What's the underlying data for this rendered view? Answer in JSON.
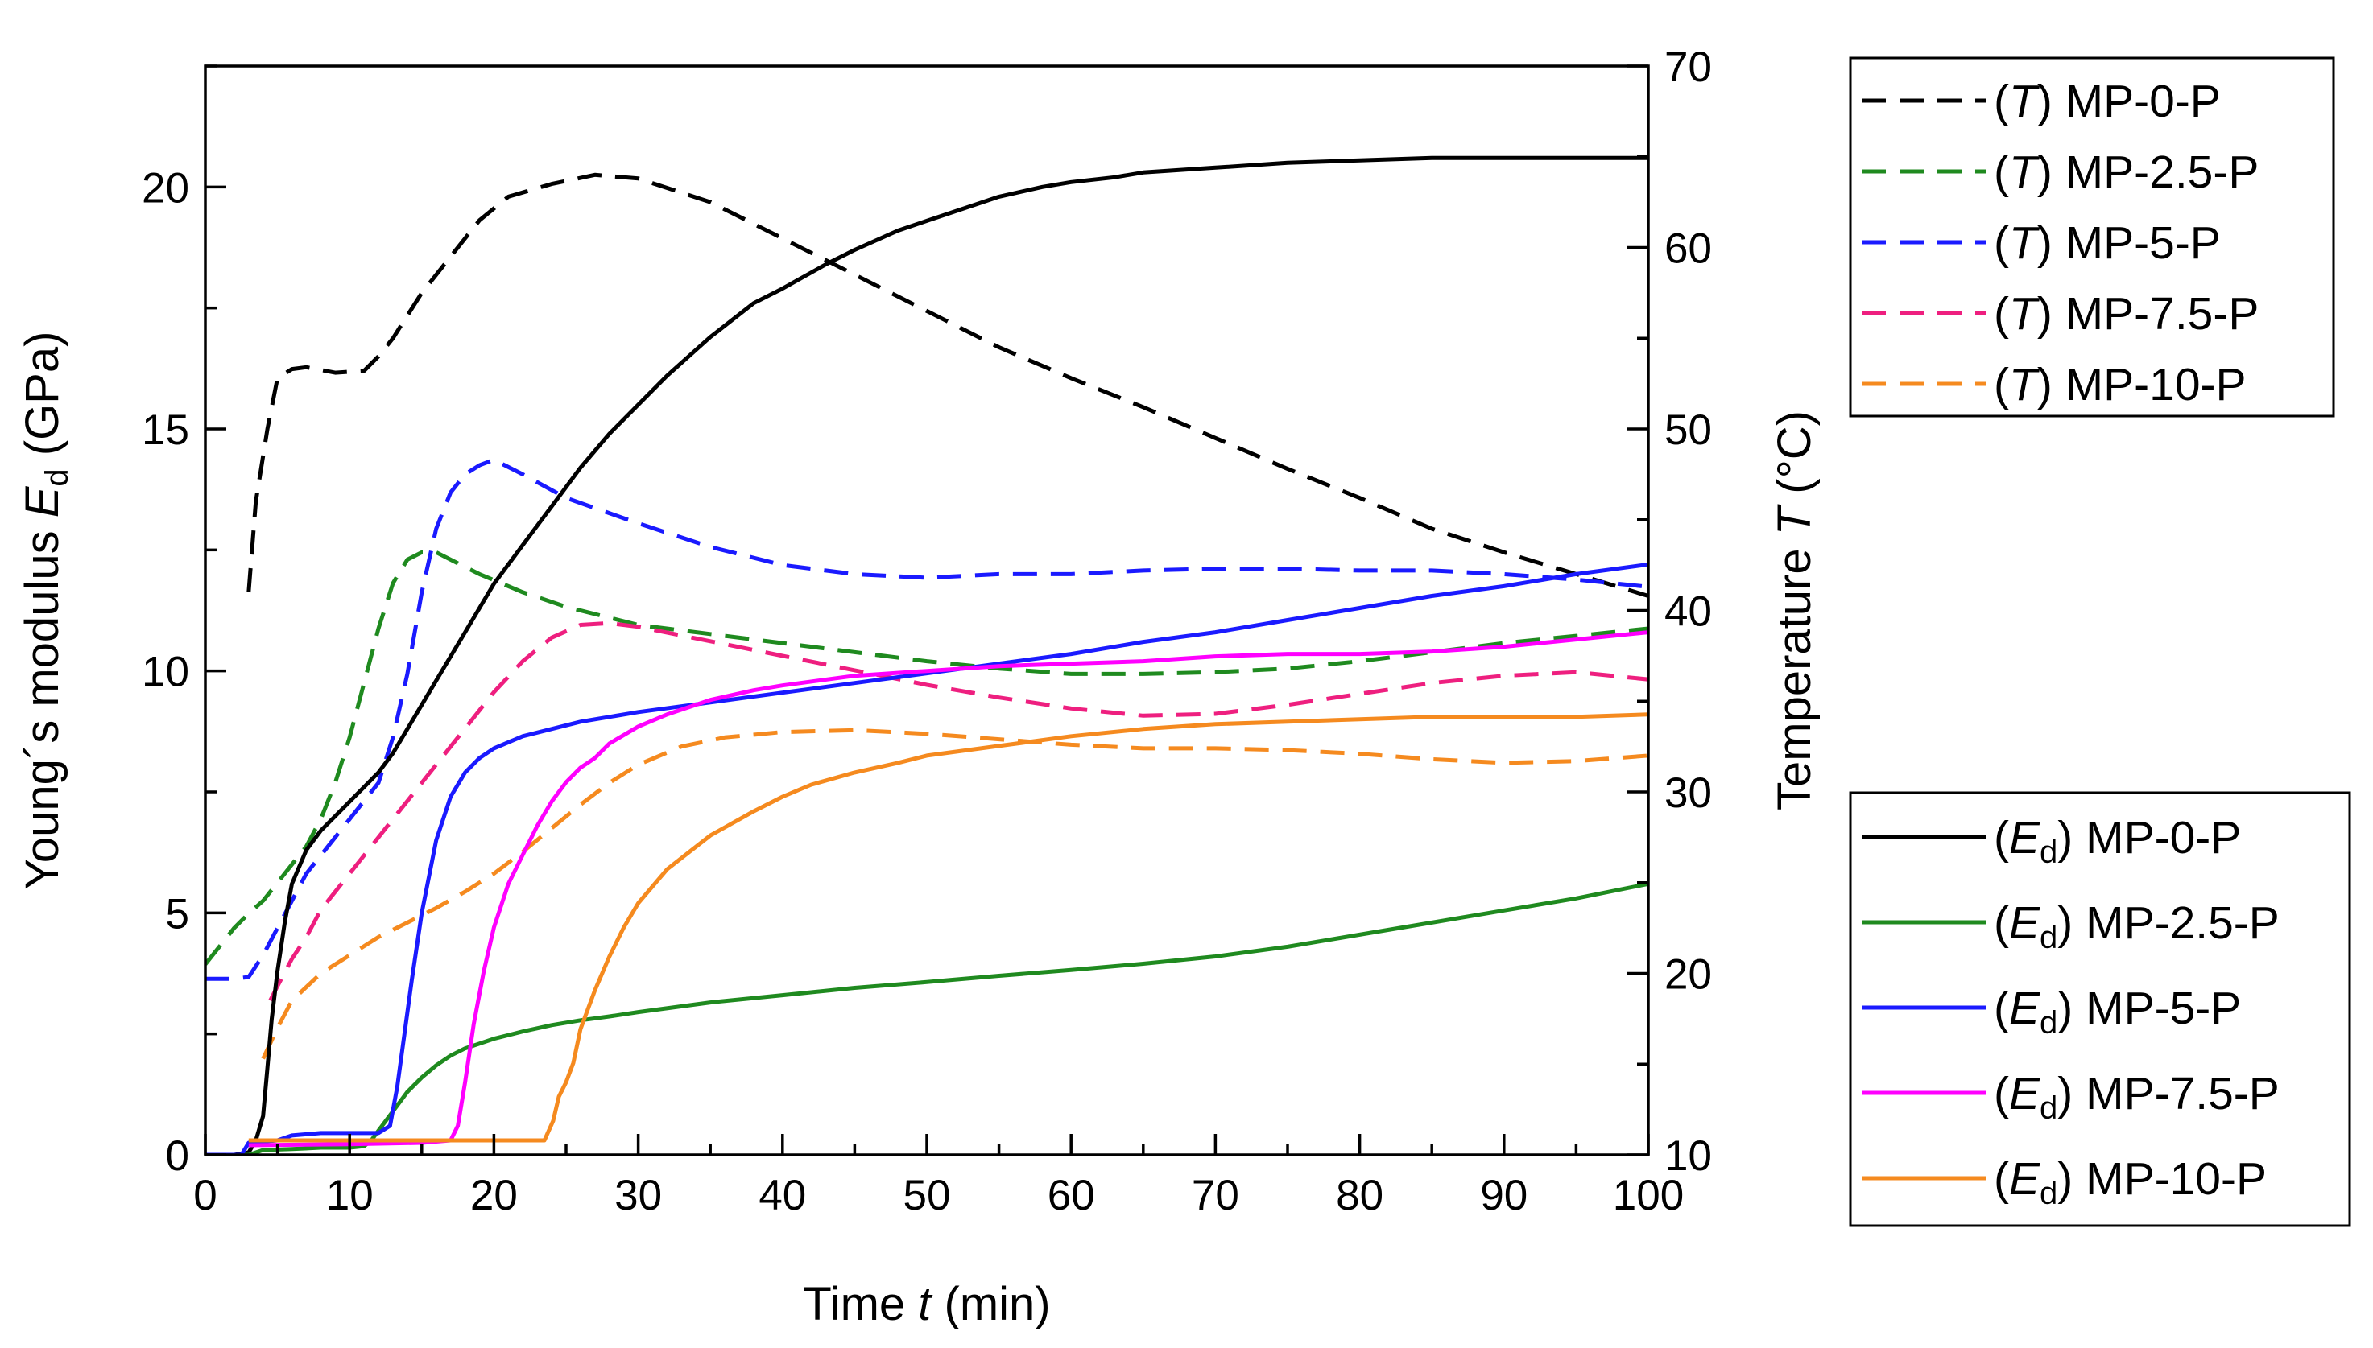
{
  "chart_data": {
    "type": "line",
    "x": {
      "label_prefix": "Time ",
      "label_var": "t",
      "label_suffix": " (min)",
      "range": [
        0,
        100
      ],
      "ticks": [
        "0",
        "10",
        "20",
        "30",
        "40",
        "50",
        "60",
        "70",
        "80",
        "90",
        "100"
      ]
    },
    "y_left": {
      "label_prefix": "Young´s modulus ",
      "label_var": "E",
      "label_sub": "d",
      "label_suffix": " (GPa)",
      "range": [
        0,
        22.5
      ],
      "ticks": [
        "0",
        "5",
        "10",
        "15",
        "20"
      ]
    },
    "y_right": {
      "label_prefix": "Temperature ",
      "label_var": "T",
      "label_suffix": " (°C)",
      "range": [
        10,
        70
      ],
      "ticks": [
        "10",
        "20",
        "30",
        "40",
        "50",
        "60",
        "70"
      ]
    },
    "legend_temperature": {
      "placement": "top-right",
      "entries": [
        {
          "prefix": "(",
          "var": "T",
          "suffix": ") MP-0-P"
        },
        {
          "prefix": "(",
          "var": "T",
          "suffix": ") MP-2.5-P"
        },
        {
          "prefix": "(",
          "var": "T",
          "suffix": ") MP-5-P"
        },
        {
          "prefix": "(",
          "var": "T",
          "suffix": ") MP-7.5-P"
        },
        {
          "prefix": "(",
          "var": "T",
          "suffix": ") MP-10-P"
        }
      ]
    },
    "legend_modulus": {
      "placement": "bottom-right",
      "entries": [
        {
          "prefix": "(",
          "var": "E",
          "sub": "d",
          "suffix": ") MP-0-P"
        },
        {
          "prefix": "(",
          "var": "E",
          "sub": "d",
          "suffix": ") MP-2.5-P"
        },
        {
          "prefix": "(",
          "var": "E",
          "sub": "d",
          "suffix": ") MP-5-P"
        },
        {
          "prefix": "(",
          "var": "E",
          "sub": "d",
          "suffix": ") MP-7.5-P"
        },
        {
          "prefix": "(",
          "var": "E",
          "sub": "d",
          "suffix": ") MP-10-P"
        }
      ]
    },
    "series": [
      {
        "name": "(T) MP-0-P",
        "axis": "right",
        "dash": true,
        "color": "#000000",
        "x": [
          3,
          3.5,
          4.3,
          5,
          6,
          7,
          9,
          11,
          12,
          13,
          15,
          17,
          19,
          21,
          24,
          27,
          30,
          35,
          40,
          45,
          50,
          55,
          60,
          65,
          70,
          75,
          80,
          85,
          90,
          95,
          100
        ],
        "y": [
          41,
          46,
          50,
          52.8,
          53.3,
          53.4,
          53.1,
          53.2,
          54,
          55,
          57.5,
          59.5,
          61.5,
          62.8,
          63.5,
          64,
          63.8,
          62.5,
          60.5,
          58.5,
          56.5,
          54.5,
          52.8,
          51.2,
          49.5,
          47.8,
          46.2,
          44.5,
          43.2,
          42,
          40.8
        ]
      },
      {
        "name": "(T) MP-2.5-P",
        "axis": "right",
        "dash": true,
        "color": "#1f8a1f",
        "x": [
          0,
          1,
          2,
          3,
          4,
          5,
          6,
          7,
          8,
          9,
          10,
          11,
          12,
          13,
          14,
          15,
          16,
          17,
          19,
          22,
          25,
          30,
          35,
          40,
          45,
          50,
          55,
          60,
          65,
          70,
          75,
          80,
          85,
          90,
          95,
          100
        ],
        "y": [
          20.5,
          21.5,
          22.5,
          23.3,
          24,
          25,
          26,
          27,
          28.5,
          30.5,
          33,
          36,
          39,
          41.5,
          42.8,
          43.2,
          43.2,
          42.8,
          42,
          41,
          40.2,
          39.2,
          38.7,
          38.2,
          37.7,
          37.2,
          36.8,
          36.5,
          36.5,
          36.6,
          36.8,
          37.2,
          37.7,
          38.2,
          38.6,
          39
        ]
      },
      {
        "name": "(T) MP-5-P",
        "axis": "right",
        "dash": true,
        "color": "#1a1aff",
        "x": [
          0,
          1,
          2,
          3,
          4,
          5,
          6,
          7,
          8,
          9,
          10,
          11,
          12,
          13,
          14,
          15,
          16,
          17,
          18,
          19,
          20,
          22,
          25,
          30,
          35,
          40,
          45,
          50,
          55,
          60,
          65,
          70,
          75,
          80,
          85,
          90,
          95,
          100
        ],
        "y": [
          19.7,
          19.7,
          19.7,
          19.8,
          21,
          22.5,
          24,
          25.5,
          26.5,
          27.5,
          28.5,
          29.5,
          30.5,
          33,
          36.5,
          41,
          44.5,
          46.5,
          47.5,
          48,
          48.3,
          47.5,
          46.2,
          44.8,
          43.5,
          42.5,
          42,
          41.8,
          42,
          42,
          42.2,
          42.3,
          42.3,
          42.2,
          42.2,
          42,
          41.7,
          41.3
        ]
      },
      {
        "name": "(T) MP-7.5-P",
        "axis": "right",
        "dash": true,
        "color": "#ee1f7f",
        "x": [
          4.5,
          5,
          6,
          7,
          8,
          10,
          12,
          14,
          16,
          18,
          20,
          22,
          24,
          26,
          28,
          30,
          35,
          40,
          45,
          50,
          55,
          60,
          65,
          70,
          75,
          80,
          85,
          90,
          95,
          100
        ],
        "y": [
          18.5,
          19.3,
          20.8,
          22,
          23.5,
          25.5,
          27.5,
          29.5,
          31.5,
          33.5,
          35.5,
          37.2,
          38.5,
          39.2,
          39.3,
          39.1,
          38.3,
          37.5,
          36.7,
          35.9,
          35.2,
          34.6,
          34.2,
          34.3,
          34.8,
          35.4,
          36,
          36.4,
          36.6,
          36.2
        ]
      },
      {
        "name": "(T) MP-10-P",
        "axis": "right",
        "dash": true,
        "color": "#f58a1f",
        "x": [
          4,
          5,
          6,
          8,
          10,
          12,
          14,
          16,
          18,
          20,
          22,
          24,
          26,
          28,
          30,
          33,
          36,
          40,
          45,
          50,
          55,
          60,
          65,
          70,
          75,
          80,
          85,
          90,
          95,
          100
        ],
        "y": [
          15.3,
          17,
          18.5,
          20,
          21,
          22,
          22.8,
          23.6,
          24.5,
          25.5,
          26.7,
          28,
          29.3,
          30.5,
          31.5,
          32.5,
          33,
          33.3,
          33.4,
          33.2,
          32.9,
          32.6,
          32.4,
          32.4,
          32.3,
          32.1,
          31.8,
          31.6,
          31.7,
          32
        ]
      },
      {
        "name": "(Ed) MP-0-P",
        "axis": "left",
        "dash": false,
        "color": "#000000",
        "x": [
          0,
          2,
          3,
          3.5,
          4,
          4.3,
          4.6,
          5,
          5.5,
          6,
          7,
          8,
          9,
          10,
          11,
          12,
          13,
          14,
          15,
          16,
          18,
          20,
          22,
          24,
          26,
          28,
          30,
          32,
          35,
          38,
          40,
          43,
          45,
          48,
          50,
          53,
          55,
          58,
          60,
          63,
          65,
          70,
          75,
          80,
          85,
          90,
          95,
          100
        ],
        "y": [
          0,
          0,
          0.05,
          0.3,
          0.8,
          1.8,
          2.8,
          3.8,
          4.8,
          5.6,
          6.3,
          6.7,
          7,
          7.3,
          7.6,
          7.9,
          8.3,
          8.8,
          9.3,
          9.8,
          10.8,
          11.8,
          12.6,
          13.4,
          14.2,
          14.9,
          15.5,
          16.1,
          16.9,
          17.6,
          17.9,
          18.4,
          18.7,
          19.1,
          19.3,
          19.6,
          19.8,
          20,
          20.1,
          20.2,
          20.3,
          20.4,
          20.5,
          20.55,
          20.6,
          20.6,
          20.6,
          20.6
        ]
      },
      {
        "name": "(Ed) MP-2.5-P",
        "axis": "left",
        "dash": false,
        "color": "#1f8a1f",
        "x": [
          0,
          3,
          4,
          6,
          8,
          10,
          11,
          11.5,
          12,
          13,
          14,
          15,
          16,
          17,
          18,
          19,
          20,
          22,
          24,
          26,
          28,
          30,
          35,
          40,
          45,
          50,
          55,
          60,
          65,
          70,
          75,
          80,
          85,
          90,
          95,
          100
        ],
        "y": [
          0,
          0,
          0.1,
          0.12,
          0.15,
          0.15,
          0.18,
          0.3,
          0.5,
          0.9,
          1.3,
          1.6,
          1.85,
          2.05,
          2.2,
          2.3,
          2.4,
          2.55,
          2.68,
          2.78,
          2.86,
          2.95,
          3.15,
          3.3,
          3.45,
          3.57,
          3.7,
          3.82,
          3.95,
          4.1,
          4.3,
          4.55,
          4.8,
          5.05,
          5.3,
          5.6
        ]
      },
      {
        "name": "(Ed) MP-5-P",
        "axis": "left",
        "dash": false,
        "color": "#1a1aff",
        "x": [
          0,
          2.5,
          3,
          5,
          6,
          8,
          10,
          12,
          12.8,
          13.3,
          13.8,
          14.3,
          15,
          16,
          17,
          18,
          19,
          20,
          22,
          24,
          26,
          28,
          30,
          35,
          40,
          45,
          50,
          55,
          60,
          65,
          70,
          75,
          80,
          85,
          90,
          95,
          100
        ],
        "y": [
          0,
          0,
          0.25,
          0.3,
          0.4,
          0.45,
          0.45,
          0.45,
          0.6,
          1.4,
          2.5,
          3.6,
          5,
          6.5,
          7.4,
          7.9,
          8.2,
          8.4,
          8.65,
          8.8,
          8.95,
          9.05,
          9.15,
          9.35,
          9.55,
          9.75,
          9.95,
          10.15,
          10.35,
          10.6,
          10.8,
          11.05,
          11.3,
          11.55,
          11.75,
          12,
          12.2
        ]
      },
      {
        "name": "(Ed) MP-7.5-P",
        "axis": "left",
        "dash": false,
        "color": "#ff00ff",
        "x": [
          3,
          10,
          15,
          17,
          17.5,
          18,
          18.6,
          19.3,
          20,
          21,
          22,
          23,
          24,
          25,
          26,
          27,
          28,
          30,
          32,
          35,
          38,
          40,
          45,
          50,
          55,
          60,
          65,
          70,
          75,
          80,
          85,
          90,
          95,
          100
        ],
        "y": [
          0.2,
          0.22,
          0.25,
          0.3,
          0.6,
          1.5,
          2.7,
          3.8,
          4.7,
          5.6,
          6.2,
          6.8,
          7.3,
          7.7,
          8,
          8.2,
          8.5,
          8.85,
          9.1,
          9.4,
          9.6,
          9.7,
          9.9,
          10,
          10.1,
          10.15,
          10.2,
          10.3,
          10.35,
          10.35,
          10.4,
          10.5,
          10.65,
          10.8
        ]
      },
      {
        "name": "(Ed) MP-10-P",
        "axis": "left",
        "dash": false,
        "color": "#f58a1f",
        "x": [
          3,
          10,
          15,
          20,
          23.5,
          24.1,
          24.5,
          25,
          25.5,
          26,
          27,
          28,
          29,
          30,
          32,
          35,
          38,
          40,
          42,
          45,
          48,
          50,
          55,
          60,
          65,
          70,
          75,
          80,
          85,
          90,
          95,
          100
        ],
        "y": [
          0.3,
          0.3,
          0.3,
          0.3,
          0.3,
          0.7,
          1.2,
          1.5,
          1.9,
          2.6,
          3.4,
          4.1,
          4.7,
          5.2,
          5.9,
          6.6,
          7.1,
          7.4,
          7.65,
          7.9,
          8.1,
          8.25,
          8.45,
          8.65,
          8.8,
          8.9,
          8.95,
          9,
          9.05,
          9.05,
          9.05,
          9.1
        ]
      }
    ]
  }
}
